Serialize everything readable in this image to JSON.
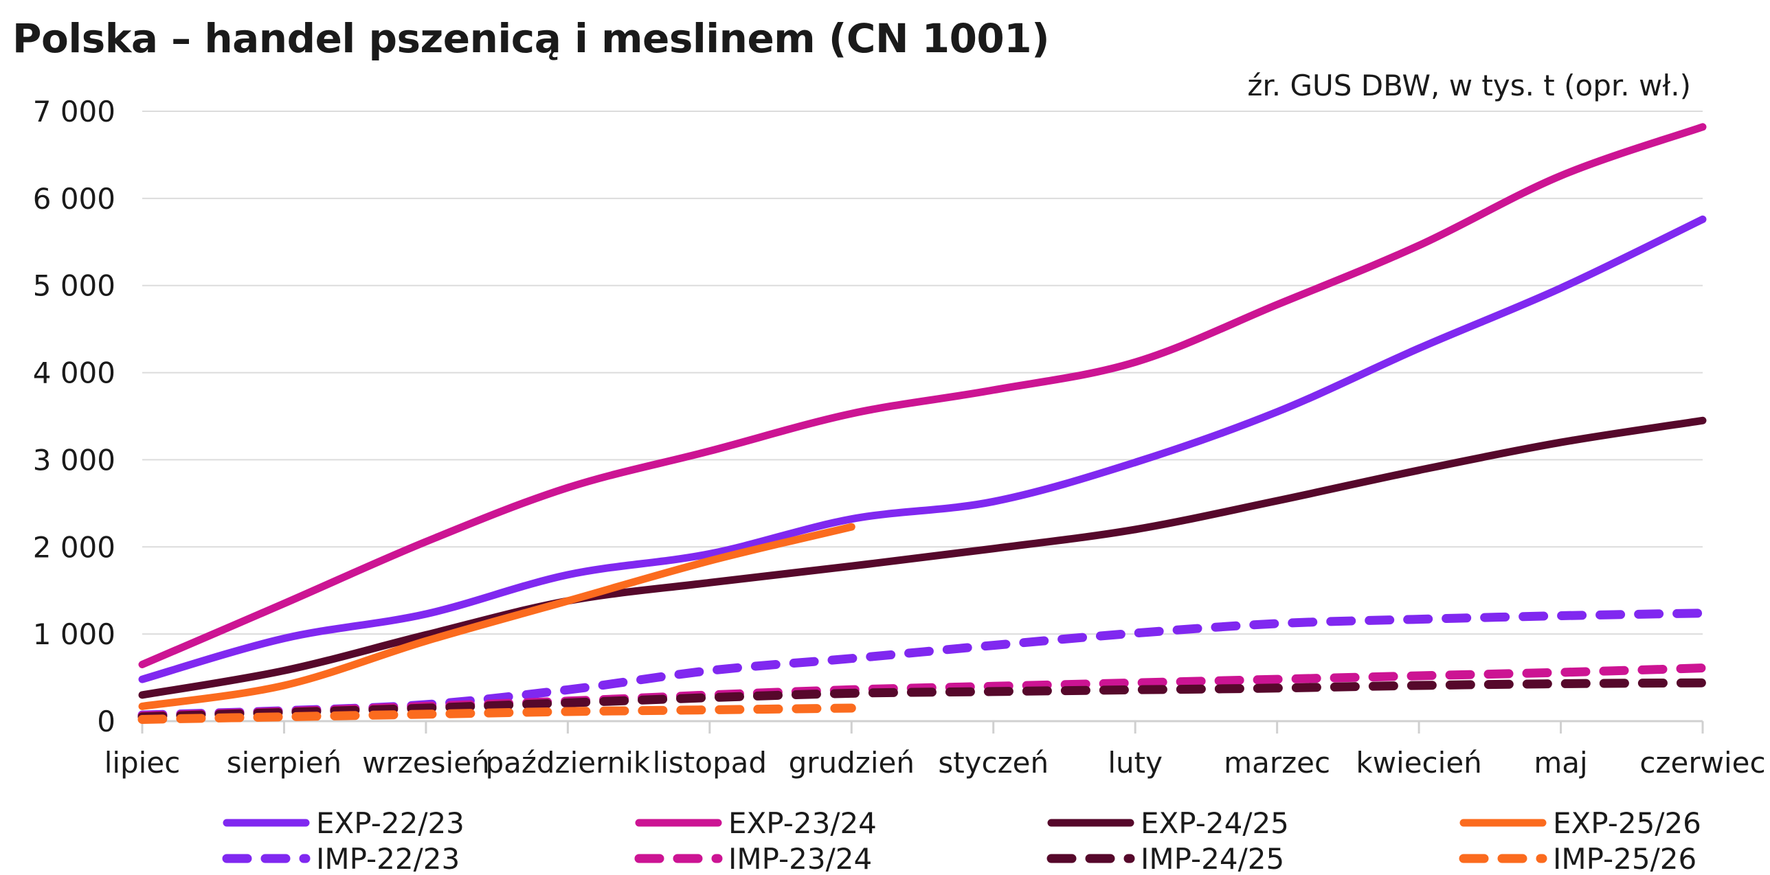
{
  "chart_data": {
    "type": "line",
    "title": "Polska – handel pszenicą i meslinem (CN 1001)",
    "subtitle": "źr. GUS DBW, w tys. t (opr. wł.)",
    "xlabel": "",
    "ylabel": "",
    "categories": [
      "lipiec",
      "sierpień",
      "wrzesień",
      "październik",
      "listopad",
      "grudzień",
      "styczeń",
      "luty",
      "marzec",
      "kwiecień",
      "maj",
      "czerwiec"
    ],
    "ylim": [
      0,
      7000
    ],
    "yticks": [
      0,
      1000,
      2000,
      3000,
      4000,
      5000,
      6000,
      7000
    ],
    "ytick_labels": [
      "0",
      "1 000",
      "2 000",
      "3 000",
      "4 000",
      "5 000",
      "6 000",
      "7 000"
    ],
    "grid": true,
    "legend_placement": "bottom",
    "series": [
      {
        "name": "EXP-22/23",
        "color": "#8028f0",
        "dashed": false,
        "values": [
          480,
          950,
          1230,
          1680,
          1920,
          2320,
          2520,
          2970,
          3550,
          4280,
          4970,
          5760
        ]
      },
      {
        "name": "EXP-23/24",
        "color": "#cc1493",
        "dashed": false,
        "values": [
          650,
          1350,
          2060,
          2680,
          3100,
          3530,
          3800,
          4120,
          4780,
          5460,
          6260,
          6820
        ]
      },
      {
        "name": "EXP-24/25",
        "color": "#56082b",
        "dashed": false,
        "values": [
          300,
          580,
          990,
          1380,
          1590,
          1780,
          1980,
          2200,
          2530,
          2880,
          3200,
          3450
        ]
      },
      {
        "name": "EXP-25/26",
        "color": "#fb6b1e",
        "dashed": false,
        "values": [
          170,
          410,
          920,
          1380,
          1840,
          2230,
          null,
          null,
          null,
          null,
          null,
          null
        ]
      },
      {
        "name": "IMP-22/23",
        "color": "#8028f0",
        "dashed": true,
        "values": [
          70,
          120,
          190,
          360,
          580,
          720,
          870,
          1010,
          1120,
          1170,
          1210,
          1240
        ]
      },
      {
        "name": "IMP-23/24",
        "color": "#cc1493",
        "dashed": true,
        "values": [
          60,
          110,
          170,
          230,
          300,
          360,
          400,
          440,
          480,
          520,
          560,
          610
        ]
      },
      {
        "name": "IMP-24/25",
        "color": "#56082b",
        "dashed": true,
        "values": [
          50,
          100,
          150,
          210,
          270,
          320,
          340,
          360,
          380,
          410,
          430,
          440
        ]
      },
      {
        "name": "IMP-25/26",
        "color": "#fb6b1e",
        "dashed": true,
        "values": [
          20,
          50,
          80,
          110,
          130,
          150,
          null,
          null,
          null,
          null,
          null,
          null
        ]
      }
    ]
  }
}
